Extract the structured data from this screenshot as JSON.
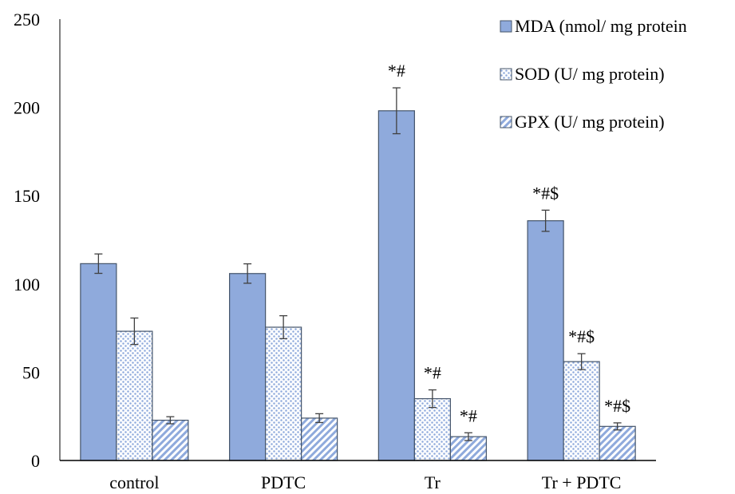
{
  "chart_data": {
    "type": "bar",
    "title": "",
    "xlabel": "",
    "ylabel": "",
    "ylim": [
      0,
      250
    ],
    "yticks": [
      0,
      50,
      100,
      150,
      200,
      250
    ],
    "grid": false,
    "legend_position": "top-right",
    "categories": [
      "control",
      "PDTC",
      "Tr",
      "Tr + PDTC"
    ],
    "series": [
      {
        "name": "MDA (nmol/ mg protein",
        "pattern": "solid",
        "color": "#8FAADC",
        "values": [
          111.5,
          105.9,
          198.1,
          135.8
        ],
        "errors": [
          5.5,
          5.5,
          13.0,
          6.0
        ],
        "annotations": [
          "",
          "",
          "*#",
          "*#$"
        ]
      },
      {
        "name": "SOD (U/ mg protein)",
        "pattern": "dots",
        "color": "#8FAADC",
        "values": [
          73.2,
          75.5,
          35.0,
          56.0
        ],
        "errors": [
          7.5,
          6.5,
          5.0,
          4.5
        ],
        "annotations": [
          "",
          "",
          "*#",
          "*#$"
        ]
      },
      {
        "name": "GPX (U/ mg protein)",
        "pattern": "diagonal",
        "color": "#8FAADC",
        "values": [
          22.8,
          24.0,
          13.5,
          19.3
        ],
        "errors": [
          2.0,
          2.5,
          2.2,
          2.0
        ],
        "annotations": [
          "",
          "",
          "*#",
          "*#$"
        ]
      }
    ]
  }
}
